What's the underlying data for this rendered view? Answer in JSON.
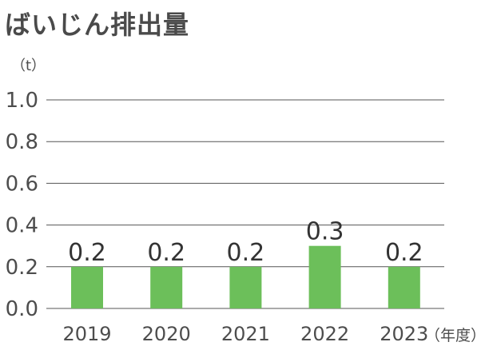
{
  "chart_data": {
    "type": "bar",
    "title": "ばいじん排出量",
    "ylabel": "（t）",
    "xlabel": "（年度）",
    "categories": [
      "2019",
      "2020",
      "2021",
      "2022",
      "2023"
    ],
    "values": [
      0.2,
      0.2,
      0.2,
      0.3,
      0.2
    ],
    "data_labels": [
      "0.2",
      "0.2",
      "0.2",
      "0.3",
      "0.2"
    ],
    "yticks": [
      "0.0",
      "0.2",
      "0.4",
      "0.6",
      "0.8",
      "1.0"
    ],
    "ylim": [
      0,
      1.0
    ],
    "grid": true,
    "bar_color": "#6cbf5a",
    "grid_color": "#555555"
  }
}
